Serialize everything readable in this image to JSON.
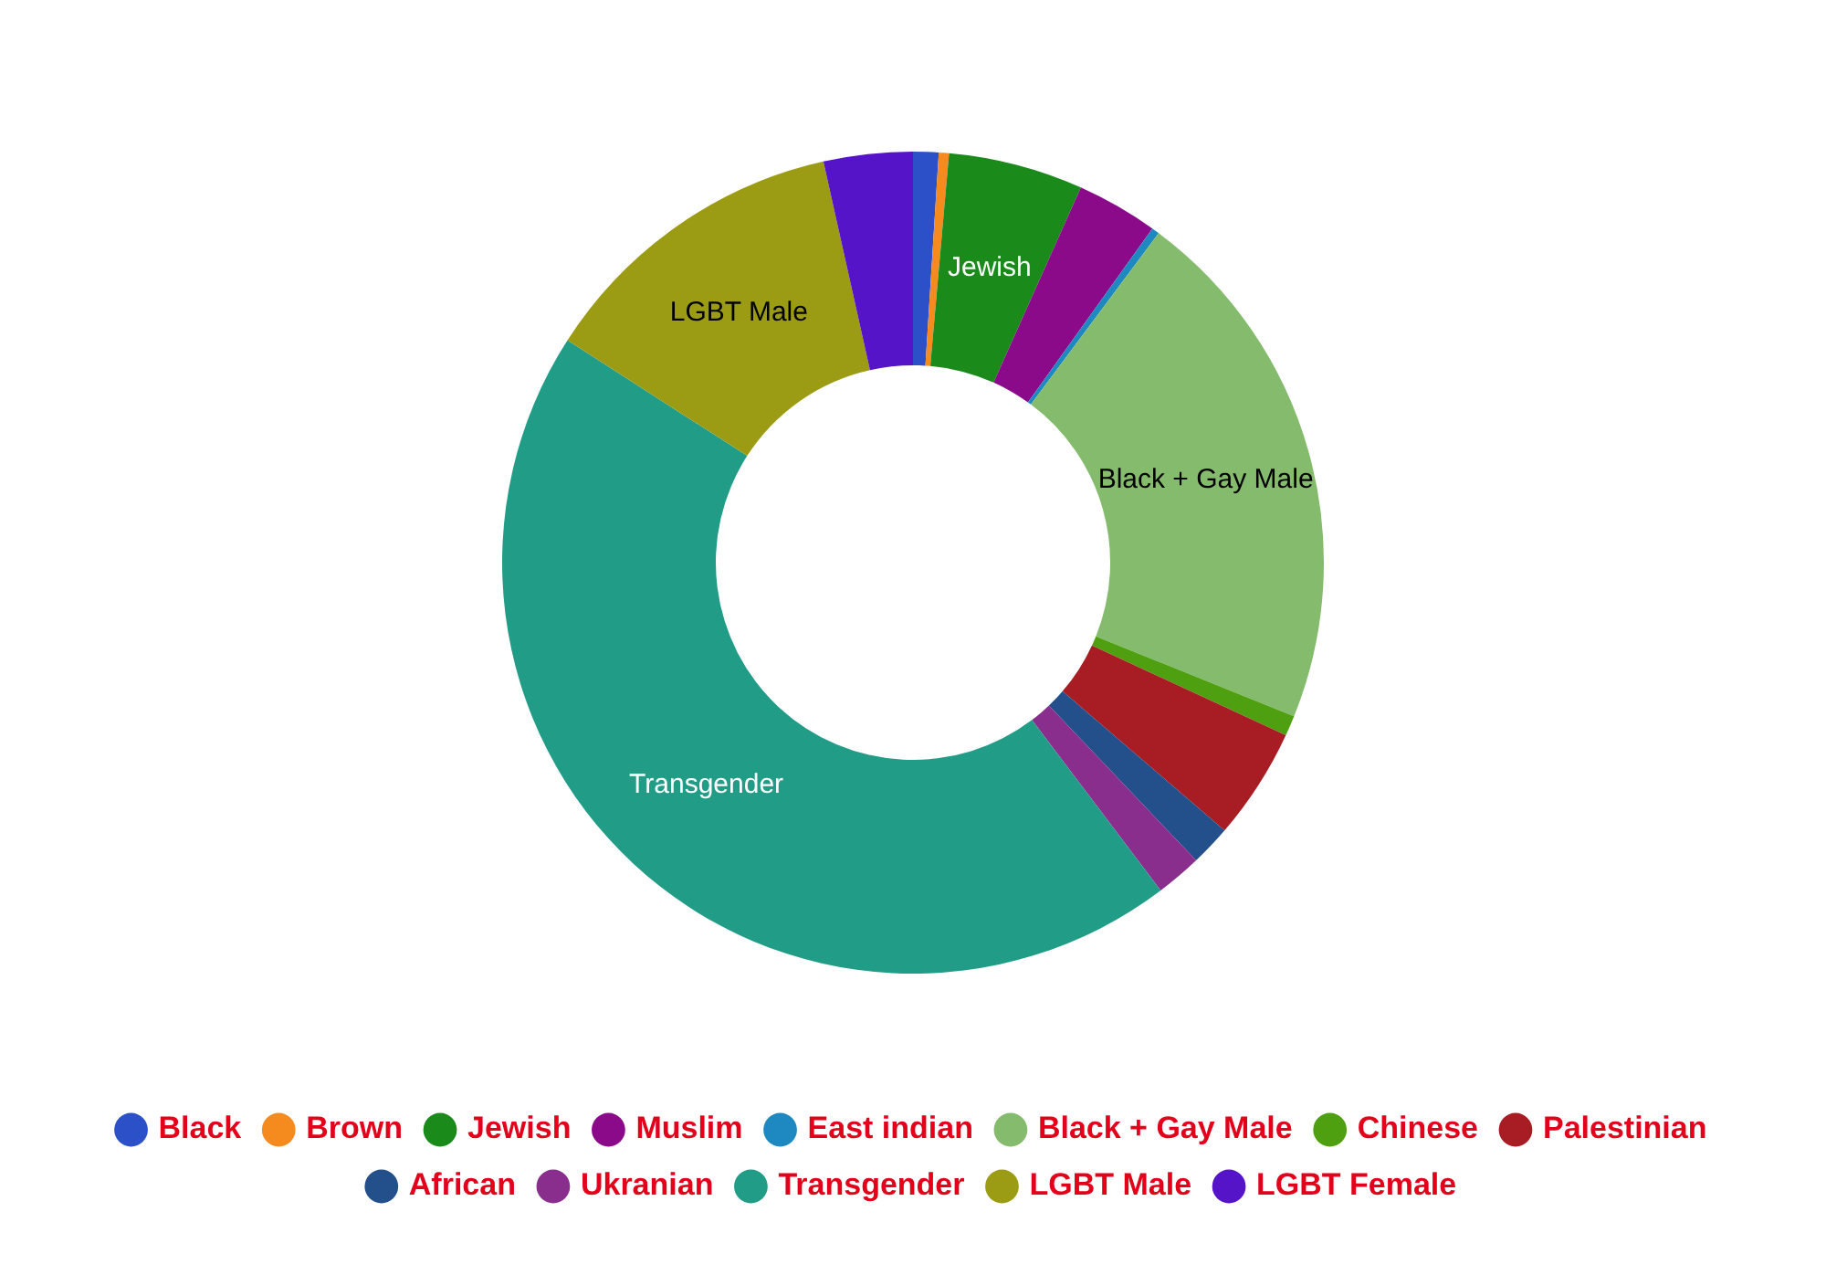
{
  "chart_data": {
    "type": "donut",
    "categories": [
      "Black",
      "Brown",
      "Jewish",
      "Muslim",
      "East indian",
      "Black + Gay Male",
      "Chinese",
      "Palestinian",
      "African",
      "Ukranian",
      "Transgender",
      "LGBT Male",
      "LGBT Female"
    ],
    "values": [
      1.0,
      0.4,
      5.3,
      3.2,
      0.3,
      20.9,
      0.8,
      4.4,
      1.6,
      1.8,
      44.4,
      12.4,
      3.5
    ],
    "colors": [
      "#2b50c8",
      "#f58a1f",
      "#1a8a1a",
      "#8a0a8a",
      "#1e88c0",
      "#85bb6c",
      "#4fa010",
      "#a81c24",
      "#23508a",
      "#8a2e8e",
      "#219c87",
      "#9c9c14",
      "#5514c8"
    ],
    "value_labels": [
      null,
      null,
      "Jewish",
      null,
      null,
      "Black + Gay Male",
      null,
      null,
      null,
      null,
      "Transgender",
      "LGBT Male",
      null
    ],
    "legend": "bottom"
  }
}
